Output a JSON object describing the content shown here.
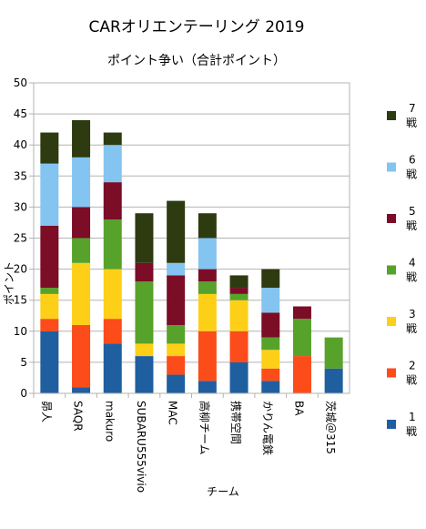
{
  "chart_data": {
    "type": "bar",
    "stacked": true,
    "title": "CARオリエンテーリング 2019",
    "subtitle": "ポイント争い（合計ポイント）",
    "xlabel": "チーム",
    "ylabel": "ポイント",
    "ylim": [
      0,
      50
    ],
    "yticks": [
      "0",
      "5",
      "10",
      "15",
      "20",
      "25",
      "30",
      "35",
      "40",
      "45",
      "50"
    ],
    "grid": true,
    "legend_position": "right",
    "categories": [
      "昴人",
      "SAQR",
      "makuro",
      "SUBARU555vivio",
      "MAC",
      "高柳チーム",
      "携帯空間",
      "かりん電鉄",
      "BA",
      "茨城＠315"
    ],
    "series": [
      {
        "name": "1戦",
        "color": "#1f5fa0",
        "values": [
          10,
          1,
          8,
          6,
          3,
          2,
          5,
          2,
          0,
          4
        ]
      },
      {
        "name": "2戦",
        "color": "#fb4c1a",
        "values": [
          2,
          10,
          4,
          0,
          3,
          8,
          5,
          2,
          6,
          0
        ]
      },
      {
        "name": "3戦",
        "color": "#fdd017",
        "values": [
          4,
          10,
          8,
          2,
          2,
          6,
          5,
          3,
          0,
          0
        ]
      },
      {
        "name": "4戦",
        "color": "#57a22a",
        "values": [
          1,
          4,
          8,
          10,
          3,
          2,
          1,
          2,
          6,
          5
        ]
      },
      {
        "name": "5戦",
        "color": "#7b0d27",
        "values": [
          10,
          5,
          6,
          3,
          8,
          2,
          1,
          4,
          2,
          0
        ]
      },
      {
        "name": "6戦",
        "color": "#84c4f0",
        "values": [
          10,
          8,
          6,
          0,
          2,
          5,
          0,
          4,
          0,
          0
        ]
      },
      {
        "name": "7戦",
        "color": "#2e3b10",
        "values": [
          5,
          6,
          2,
          8,
          10,
          4,
          2,
          3,
          0,
          0
        ]
      }
    ]
  }
}
